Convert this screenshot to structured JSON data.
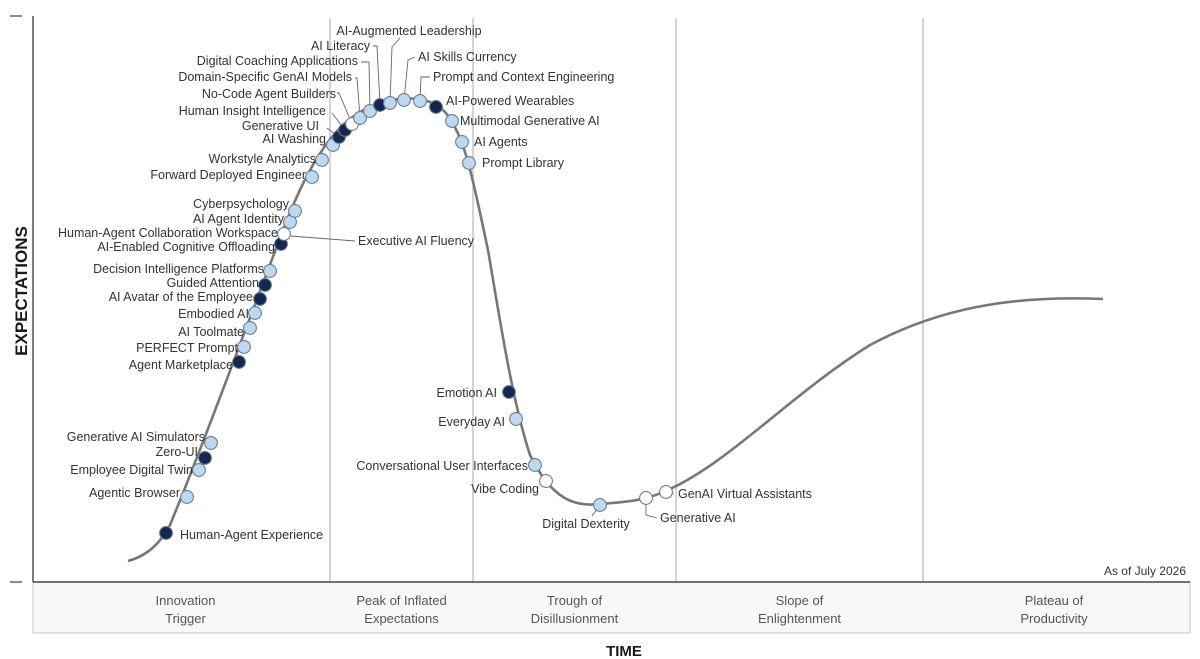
{
  "chart_data": {
    "type": "hype-cycle",
    "title": "",
    "xlabel": "TIME",
    "ylabel": "EXPECTATIONS",
    "note": "As of July 2026",
    "phases": [
      {
        "lines": [
          "Innovation",
          "Trigger"
        ]
      },
      {
        "lines": [
          "Peak of Inflated",
          "Expectations"
        ]
      },
      {
        "lines": [
          "Trough of",
          "Disillusionment"
        ]
      },
      {
        "lines": [
          "Slope of",
          "Enlightenment"
        ]
      },
      {
        "lines": [
          "Plateau of",
          "Productivity"
        ]
      }
    ],
    "colors": {
      "light": "#bcd9ef",
      "dark": "#13284f",
      "white": "#ffffff",
      "outline": "#6a7d94",
      "curve": "#777777"
    },
    "points": [
      {
        "name": "Human-Agent Experience",
        "style": "dark"
      },
      {
        "name": "Agentic Browser",
        "style": "light"
      },
      {
        "name": "Employee Digital Twin",
        "style": "light"
      },
      {
        "name": "Zero-UI",
        "style": "dark"
      },
      {
        "name": "Generative AI Simulators",
        "style": "light"
      },
      {
        "name": "Agent Marketplace",
        "style": "dark"
      },
      {
        "name": "PERFECT Prompt",
        "style": "light"
      },
      {
        "name": "AI Toolmate",
        "style": "light"
      },
      {
        "name": "Embodied AI",
        "style": "light"
      },
      {
        "name": "AI Avatar of the Employee",
        "style": "dark"
      },
      {
        "name": "Guided Attention",
        "style": "dark"
      },
      {
        "name": "Decision Intelligence Platforms",
        "style": "light"
      },
      {
        "name": "AI-Enabled Cognitive Offloading",
        "style": "dark"
      },
      {
        "name": "Human-Agent Collaboration Workspace",
        "style": "white"
      },
      {
        "name": "Executive AI Fluency",
        "style": "white"
      },
      {
        "name": "AI Agent Identity",
        "style": "light"
      },
      {
        "name": "Cyberpsychology",
        "style": "light"
      },
      {
        "name": "Forward Deployed Engineer",
        "style": "light"
      },
      {
        "name": "Workstyle Analytics",
        "style": "light"
      },
      {
        "name": "AI Washing",
        "style": "light"
      },
      {
        "name": "Generative UI",
        "style": "dark"
      },
      {
        "name": "Human Insight Intelligence",
        "style": "dark"
      },
      {
        "name": "No-Code Agent Builders",
        "style": "white"
      },
      {
        "name": "Domain-Specific GenAI Models",
        "style": "light"
      },
      {
        "name": "Digital Coaching Applications",
        "style": "light"
      },
      {
        "name": "AI Literacy",
        "style": "dark"
      },
      {
        "name": "AI-Augmented Leadership",
        "style": "light"
      },
      {
        "name": "AI Skills Currency",
        "style": "light"
      },
      {
        "name": "Prompt and Context Engineering",
        "style": "light"
      },
      {
        "name": "AI-Powered Wearables",
        "style": "dark"
      },
      {
        "name": "Multimodal Generative AI",
        "style": "light"
      },
      {
        "name": "AI Agents",
        "style": "light"
      },
      {
        "name": "Prompt Library",
        "style": "light"
      },
      {
        "name": "Emotion AI",
        "style": "dark"
      },
      {
        "name": "Everyday AI",
        "style": "light"
      },
      {
        "name": "Conversational User Interfaces",
        "style": "light"
      },
      {
        "name": "Vibe Coding",
        "style": "white"
      },
      {
        "name": "Digital Dexterity",
        "style": "light"
      },
      {
        "name": "Generative AI",
        "style": "white"
      },
      {
        "name": "GenAI Virtual Assistants",
        "style": "white"
      }
    ]
  }
}
